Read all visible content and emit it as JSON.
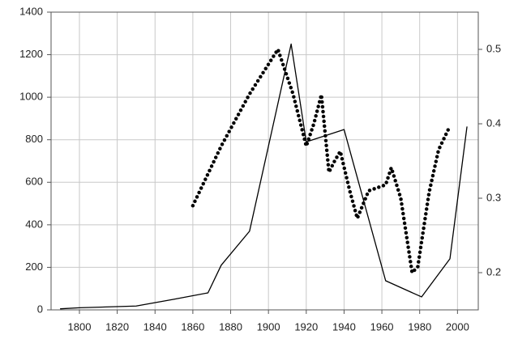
{
  "chart_data": {
    "type": "line",
    "xlim": [
      1785,
      2011
    ],
    "xticks": [
      1800,
      1820,
      1840,
      1860,
      1880,
      1900,
      1920,
      1940,
      1960,
      1980,
      2000
    ],
    "ylim": [
      0,
      1400
    ],
    "yticks": [
      0,
      200,
      400,
      600,
      800,
      1000,
      1200,
      1400
    ],
    "y2lim": [
      0.15,
      0.55
    ],
    "y2ticks": [
      0.2,
      0.3,
      0.4,
      0.5
    ],
    "grid": true,
    "series": [
      {
        "color": "#000000",
        "style": "solid",
        "x": [
          1790,
          1800,
          1830,
          1850,
          1868,
          1875,
          1890,
          1912,
          1920,
          1940,
          1962,
          1981,
          1996,
          2005
        ],
        "values": [
          5,
          10,
          18,
          50,
          80,
          210,
          370,
          1250,
          790,
          848,
          137,
          61,
          240,
          860
        ]
      },
      {
        "color": "#000000",
        "style": "dotted",
        "axis": "y2",
        "x": [
          1860,
          1875,
          1890,
          1905,
          1913,
          1920,
          1924,
          1928,
          1932,
          1935,
          1938,
          1943,
          1947,
          1953,
          1962,
          1965,
          1970,
          1976,
          1979,
          1985,
          1990,
          1996
        ],
        "values": [
          0.29,
          0.37,
          0.44,
          0.5,
          0.44,
          0.37,
          0.4,
          0.439,
          0.335,
          0.35,
          0.363,
          0.31,
          0.273,
          0.31,
          0.318,
          0.341,
          0.3,
          0.2,
          0.208,
          0.308,
          0.365,
          0.397
        ]
      }
    ]
  }
}
